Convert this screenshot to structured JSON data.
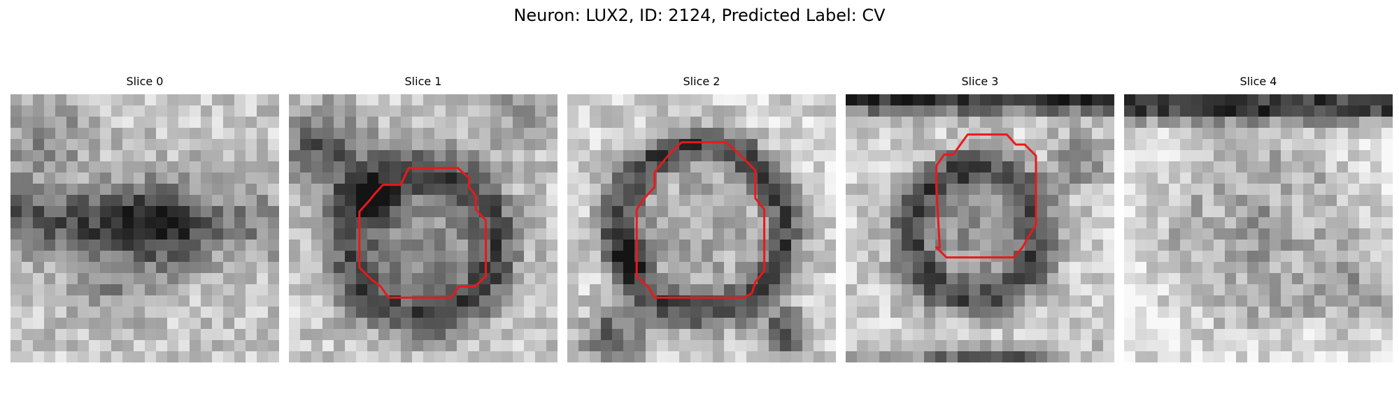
{
  "figure": {
    "title": "Neuron: LUX2, ID: 2124, Predicted Label: CV",
    "outline_color": "#e8191b",
    "colormap": "grayscale"
  },
  "slices": [
    {
      "label": "Slice 0",
      "has_outline": false
    },
    {
      "label": "Slice 1",
      "has_outline": true
    },
    {
      "label": "Slice 2",
      "has_outline": true
    },
    {
      "label": "Slice 3",
      "has_outline": true
    },
    {
      "label": "Slice 4",
      "has_outline": false
    }
  ]
}
